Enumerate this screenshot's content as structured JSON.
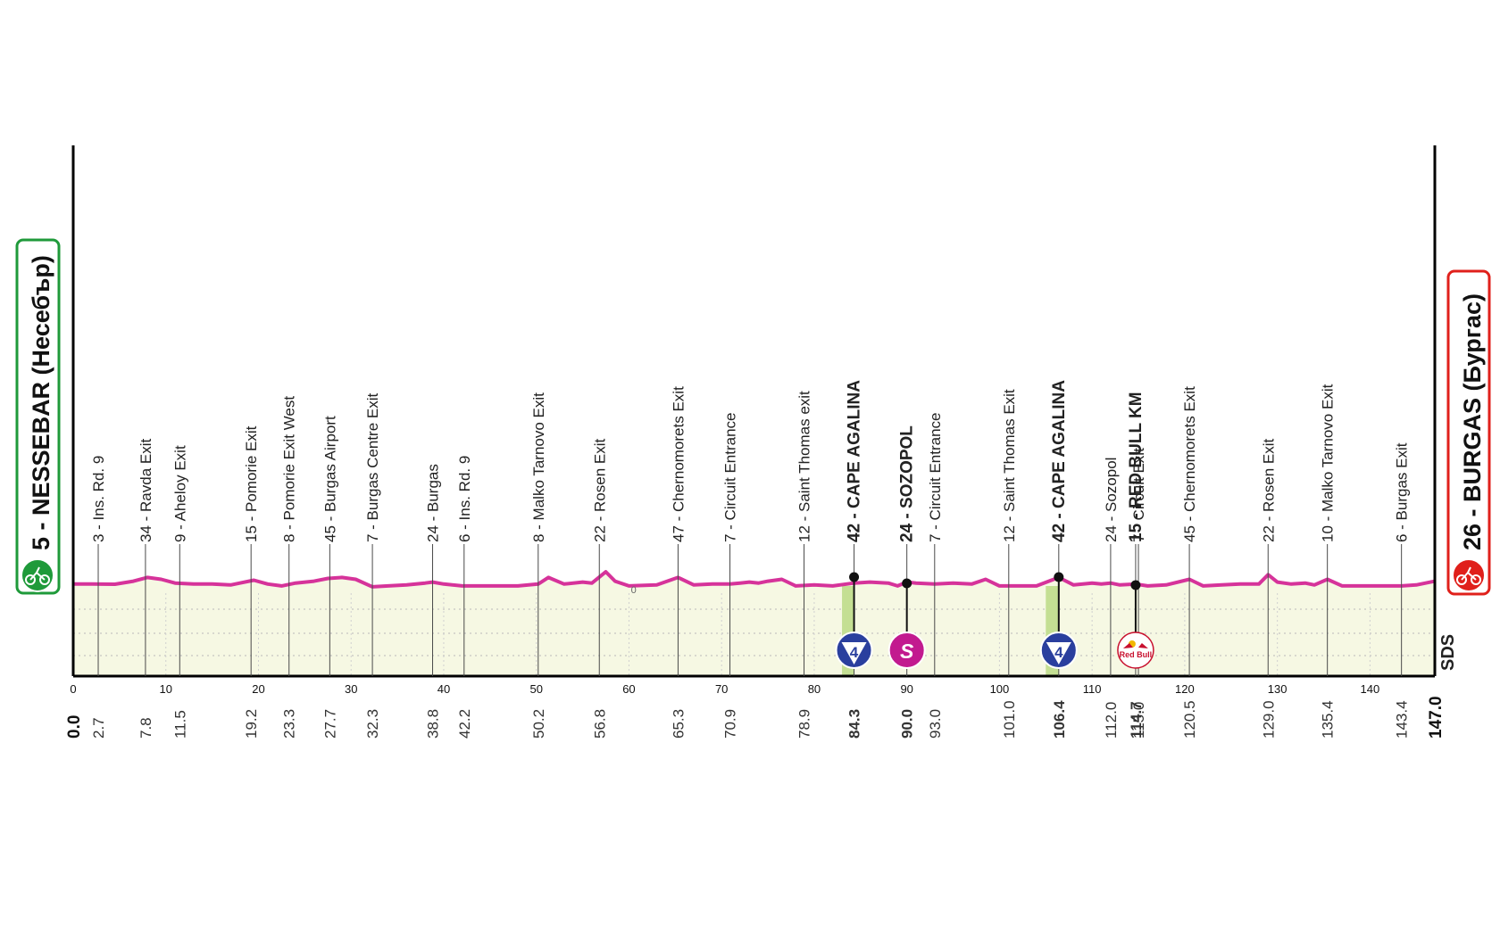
{
  "start": {
    "altitude": "5",
    "name": "NESSEBAR (Несебър)",
    "color": "#1f9a3a"
  },
  "finish": {
    "altitude": "26",
    "name": "BURGAS (Бургас)",
    "color": "#e0201b"
  },
  "sponsor_mark": "SDS",
  "colors": {
    "profile_line": "#d6339a",
    "fill": "#f6f8e3",
    "climb_fill": "#c4df93",
    "kom_badge": "#2a3f9e",
    "sprint_badge": "#c21a8f"
  },
  "chart_data": {
    "type": "area",
    "x_axis": {
      "min": 0,
      "max": 147,
      "ticks": [
        0,
        10,
        20,
        30,
        40,
        50,
        60,
        70,
        80,
        90,
        100,
        110,
        120,
        130,
        140
      ]
    },
    "total_km": "147.0",
    "start_km": "0.0",
    "profile": [
      [
        0,
        5
      ],
      [
        2,
        5
      ],
      [
        4.5,
        4.8
      ],
      [
        6.5,
        8
      ],
      [
        8,
        12
      ],
      [
        9.5,
        10
      ],
      [
        11,
        6
      ],
      [
        13,
        5
      ],
      [
        15,
        5
      ],
      [
        17,
        4
      ],
      [
        18,
        6
      ],
      [
        19.5,
        9
      ],
      [
        21,
        5
      ],
      [
        22.5,
        3
      ],
      [
        24,
        6
      ],
      [
        26,
        8
      ],
      [
        27.5,
        11
      ],
      [
        29,
        12
      ],
      [
        30.5,
        10
      ],
      [
        32.3,
        2
      ],
      [
        34,
        3
      ],
      [
        36,
        4
      ],
      [
        38,
        6
      ],
      [
        38.8,
        7
      ],
      [
        40,
        5
      ],
      [
        42,
        3
      ],
      [
        45,
        3
      ],
      [
        48,
        3
      ],
      [
        50.2,
        5
      ],
      [
        51.3,
        12
      ],
      [
        53,
        5
      ],
      [
        55,
        7
      ],
      [
        56,
        6
      ],
      [
        57.5,
        18
      ],
      [
        58.5,
        8
      ],
      [
        60,
        3
      ],
      [
        63,
        4
      ],
      [
        65.3,
        12
      ],
      [
        67,
        4
      ],
      [
        69,
        5
      ],
      [
        70.9,
        5
      ],
      [
        72,
        6
      ],
      [
        73,
        7
      ],
      [
        74,
        6
      ],
      [
        75,
        8
      ],
      [
        76.5,
        10
      ],
      [
        78,
        3
      ],
      [
        80,
        4
      ],
      [
        82,
        3
      ],
      [
        84.3,
        6
      ],
      [
        86,
        7
      ],
      [
        88,
        6
      ],
      [
        89,
        3
      ],
      [
        90,
        7
      ],
      [
        91,
        6
      ],
      [
        93,
        5
      ],
      [
        95,
        6
      ],
      [
        97,
        5
      ],
      [
        98.5,
        10
      ],
      [
        100,
        3
      ],
      [
        102,
        3
      ],
      [
        104,
        3
      ],
      [
        106.4,
        12
      ],
      [
        108,
        4
      ],
      [
        110,
        6
      ],
      [
        111,
        5
      ],
      [
        112,
        6
      ],
      [
        113,
        4
      ],
      [
        114.7,
        5
      ],
      [
        116,
        3
      ],
      [
        118,
        4
      ],
      [
        120.5,
        10
      ],
      [
        122,
        3
      ],
      [
        124,
        4
      ],
      [
        126,
        5
      ],
      [
        128,
        5
      ],
      [
        129,
        15
      ],
      [
        130,
        7
      ],
      [
        131.5,
        5
      ],
      [
        133,
        6
      ],
      [
        134,
        4
      ],
      [
        135.4,
        10
      ],
      [
        137,
        3
      ],
      [
        140,
        3
      ],
      [
        143.4,
        3
      ],
      [
        145,
        4
      ],
      [
        147,
        8
      ]
    ],
    "points": [
      {
        "km": "2.7",
        "label": "3 - Ins. Rd. 9",
        "bold": false
      },
      {
        "km": "7.8",
        "label": "34 - Ravda Exit",
        "bold": false
      },
      {
        "km": "11.5",
        "label": "9 - Aheloy Exit",
        "bold": false
      },
      {
        "km": "19.2",
        "label": "15 - Pomorie Exit",
        "bold": false
      },
      {
        "km": "23.3",
        "label": "8 - Pomorie Exit West",
        "bold": false
      },
      {
        "km": "27.7",
        "label": "45 - Burgas Airport",
        "bold": false
      },
      {
        "km": "32.3",
        "label": "7 - Burgas Centre Exit",
        "bold": false
      },
      {
        "km": "38.8",
        "label": "24 - Burgas",
        "bold": false
      },
      {
        "km": "42.2",
        "label": "6 - Ins. Rd. 9",
        "bold": false
      },
      {
        "km": "50.2",
        "label": "8 - Malko Tarnovo Exit",
        "bold": false
      },
      {
        "km": "56.8",
        "label": "22 - Rosen Exit",
        "bold": false
      },
      {
        "km": "65.3",
        "label": "47 - Chernomorets Exit",
        "bold": false
      },
      {
        "km": "70.9",
        "label": "7 - Circuit Entrance",
        "bold": false
      },
      {
        "km": "78.9",
        "label": "12 - Saint Thomas exit",
        "bold": false
      },
      {
        "km": "84.3",
        "label": "42 - CAPE AGALINA",
        "bold": true
      },
      {
        "km": "90.0",
        "label": "24 - SOZOPOL",
        "bold": true
      },
      {
        "km": "93.0",
        "label": "7 - Circuit Entrance",
        "bold": false
      },
      {
        "km": "101.0",
        "label": "12 - Saint Thomas Exit",
        "bold": false
      },
      {
        "km": "106.4",
        "label": "42 - CAPE AGALINA",
        "bold": true
      },
      {
        "km": "112.0",
        "label": "24 - Sozopol",
        "bold": false
      },
      {
        "km": "114.7",
        "label": "15 - RED BULL KM",
        "bold": true
      },
      {
        "km": "115.0",
        "label": "7 - Circuit Exit",
        "bold": false
      },
      {
        "km": "120.5",
        "label": "45 - Chernomorets Exit",
        "bold": false
      },
      {
        "km": "129.0",
        "label": "22 - Rosen Exit",
        "bold": false
      },
      {
        "km": "135.4",
        "label": "10 - Malko Tarnovo Exit",
        "bold": false
      },
      {
        "km": "143.4",
        "label": "6 - Burgas Exit",
        "bold": false
      }
    ],
    "climbs": [
      {
        "start": 83.0,
        "end": 84.3
      },
      {
        "start": 105.0,
        "end": 106.4
      }
    ],
    "badges": [
      {
        "km": 84.3,
        "type": "kom",
        "text": "4"
      },
      {
        "km": 90.0,
        "type": "sprint",
        "text": "S"
      },
      {
        "km": 106.4,
        "type": "kom",
        "text": "4"
      },
      {
        "km": 114.7,
        "type": "redbull",
        "text": "Red Bull"
      }
    ],
    "zero_mark": "0"
  }
}
